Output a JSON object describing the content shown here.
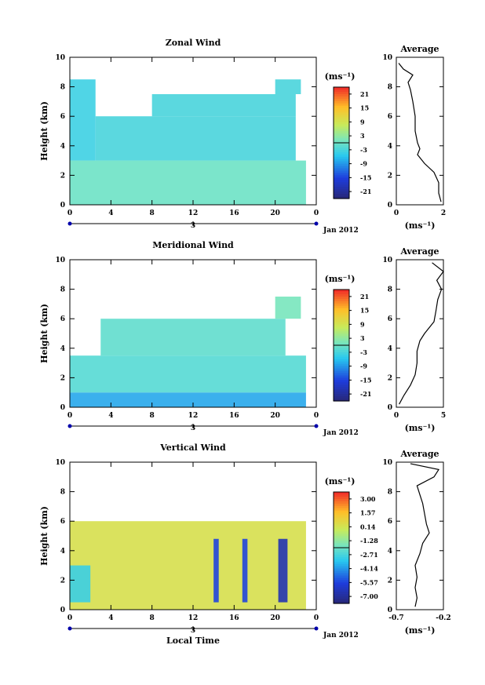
{
  "chart_data": [
    {
      "type": "heatmap",
      "title": "Zonal Wind",
      "ylabel": "Height (km)",
      "xlim": [
        0,
        24
      ],
      "ylim": [
        0,
        10
      ],
      "xticks": [
        "0",
        "4",
        "8",
        "12",
        "16",
        "20",
        "0"
      ],
      "yticks": [
        "0",
        "2",
        "4",
        "6",
        "8",
        "10"
      ],
      "date_tick": "3",
      "date_label": "Jan 2012",
      "colorbar": {
        "unit": "(ms⁻¹)",
        "ticks": [
          "21",
          "15",
          "9",
          "3",
          "-3",
          "-9",
          "-15",
          "-21"
        ],
        "range": [
          -24,
          24
        ]
      },
      "regions": [
        {
          "t0": 0,
          "t1": 23,
          "h0": 0,
          "h1": 3.0,
          "value": 0
        },
        {
          "t0": 0,
          "t1": 2.5,
          "h0": 3.0,
          "h1": 8.5,
          "value": -4
        },
        {
          "t0": 2.5,
          "t1": 22,
          "h0": 3.0,
          "h1": 6.0,
          "value": -3
        },
        {
          "t0": 8,
          "t1": 22,
          "h0": 6.0,
          "h1": 7.5,
          "value": -3
        },
        {
          "t0": 20,
          "t1": 22.5,
          "h0": 7.5,
          "h1": 8.5,
          "value": -3
        }
      ],
      "profile": {
        "title": "Average",
        "xlabel": "(ms⁻¹)",
        "xlim": [
          0,
          2
        ],
        "xticks": [
          "0",
          "2"
        ],
        "h": [
          0.2,
          0.8,
          1.5,
          2.2,
          2.8,
          3.4,
          3.8,
          4.2,
          5.0,
          6.0,
          7.0,
          7.8,
          8.3,
          8.8,
          9.2,
          9.6
        ],
        "v": [
          1.9,
          1.8,
          1.8,
          1.6,
          1.2,
          0.9,
          1.0,
          0.9,
          0.8,
          0.8,
          0.7,
          0.6,
          0.5,
          0.7,
          0.3,
          0.1
        ]
      }
    },
    {
      "type": "heatmap",
      "title": "Meridional Wind",
      "ylabel": "Height (km)",
      "xlim": [
        0,
        24
      ],
      "ylim": [
        0,
        10
      ],
      "xticks": [
        "0",
        "4",
        "8",
        "12",
        "16",
        "20",
        "0"
      ],
      "yticks": [
        "0",
        "2",
        "4",
        "6",
        "8",
        "10"
      ],
      "date_tick": "3",
      "date_label": "Jan 2012",
      "colorbar": {
        "unit": "(ms⁻¹)",
        "ticks": [
          "21",
          "15",
          "9",
          "3",
          "-3",
          "-9",
          "-15",
          "-21"
        ],
        "range": [
          -24,
          24
        ]
      },
      "regions": [
        {
          "t0": 0,
          "t1": 23,
          "h0": 0,
          "h1": 1.0,
          "value": -8
        },
        {
          "t0": 0,
          "t1": 23,
          "h0": 1.0,
          "h1": 3.5,
          "value": -2
        },
        {
          "t0": 3,
          "t1": 21,
          "h0": 3.5,
          "h1": 6.0,
          "value": -1
        },
        {
          "t0": 20,
          "t1": 22.5,
          "h0": 6.0,
          "h1": 7.5,
          "value": 1
        }
      ],
      "profile": {
        "title": "Average",
        "xlabel": "(ms⁻¹)",
        "xlim": [
          0,
          5
        ],
        "xticks": [
          "0",
          "5"
        ],
        "h": [
          0.2,
          0.8,
          1.5,
          2.2,
          3.0,
          3.8,
          4.5,
          5.0,
          5.8,
          6.5,
          7.3,
          8.0,
          8.6,
          9.2,
          9.8
        ],
        "v": [
          0.3,
          0.8,
          1.5,
          2.0,
          2.2,
          2.2,
          2.5,
          3.0,
          4.0,
          4.2,
          4.4,
          4.8,
          4.3,
          5.0,
          3.8
        ]
      }
    },
    {
      "type": "heatmap",
      "title": "Vertical Wind",
      "xlabel": "Local Time",
      "ylabel": "Height (km)",
      "xlim": [
        0,
        24
      ],
      "ylim": [
        0,
        10
      ],
      "xticks": [
        "0",
        "4",
        "8",
        "12",
        "16",
        "20",
        "0"
      ],
      "yticks": [
        "0",
        "2",
        "4",
        "6",
        "8",
        "10"
      ],
      "date_tick": "3",
      "date_label": "Jan 2012",
      "colorbar": {
        "unit": "(ms⁻¹)",
        "ticks": [
          "3.00",
          "1.57",
          "0.14",
          "-1.28",
          "-2.71",
          "-4.14",
          "-5.57",
          "-7.00"
        ],
        "range": [
          -7.7,
          3.7
        ]
      },
      "regions": [
        {
          "t0": 0,
          "t1": 23,
          "h0": 0,
          "h1": 6.0,
          "value": 0.3
        },
        {
          "t0": 0,
          "t1": 2,
          "h0": 0.5,
          "h1": 3.0,
          "value": -3.0
        },
        {
          "t0": 14,
          "t1": 14.5,
          "h0": 0.5,
          "h1": 4.8,
          "value": -5.5
        },
        {
          "t0": 16.8,
          "t1": 17.3,
          "h0": 0.5,
          "h1": 4.8,
          "value": -5.5
        },
        {
          "t0": 20.3,
          "t1": 21.2,
          "h0": 0.5,
          "h1": 4.8,
          "value": -6.5
        }
      ],
      "profile": {
        "title": "Average",
        "xlabel": "(ms⁻¹)",
        "xlim": [
          -0.7,
          -0.2
        ],
        "xticks": [
          "-0.7",
          "-0.2"
        ],
        "h": [
          0.2,
          0.8,
          1.5,
          2.2,
          3.0,
          3.8,
          4.5,
          5.2,
          5.8,
          6.5,
          7.2,
          7.8,
          8.4,
          9.0,
          9.5,
          9.9
        ],
        "v": [
          -0.5,
          -0.48,
          -0.5,
          -0.48,
          -0.5,
          -0.45,
          -0.42,
          -0.35,
          -0.38,
          -0.4,
          -0.42,
          -0.45,
          -0.48,
          -0.3,
          -0.25,
          -0.55
        ]
      }
    }
  ]
}
